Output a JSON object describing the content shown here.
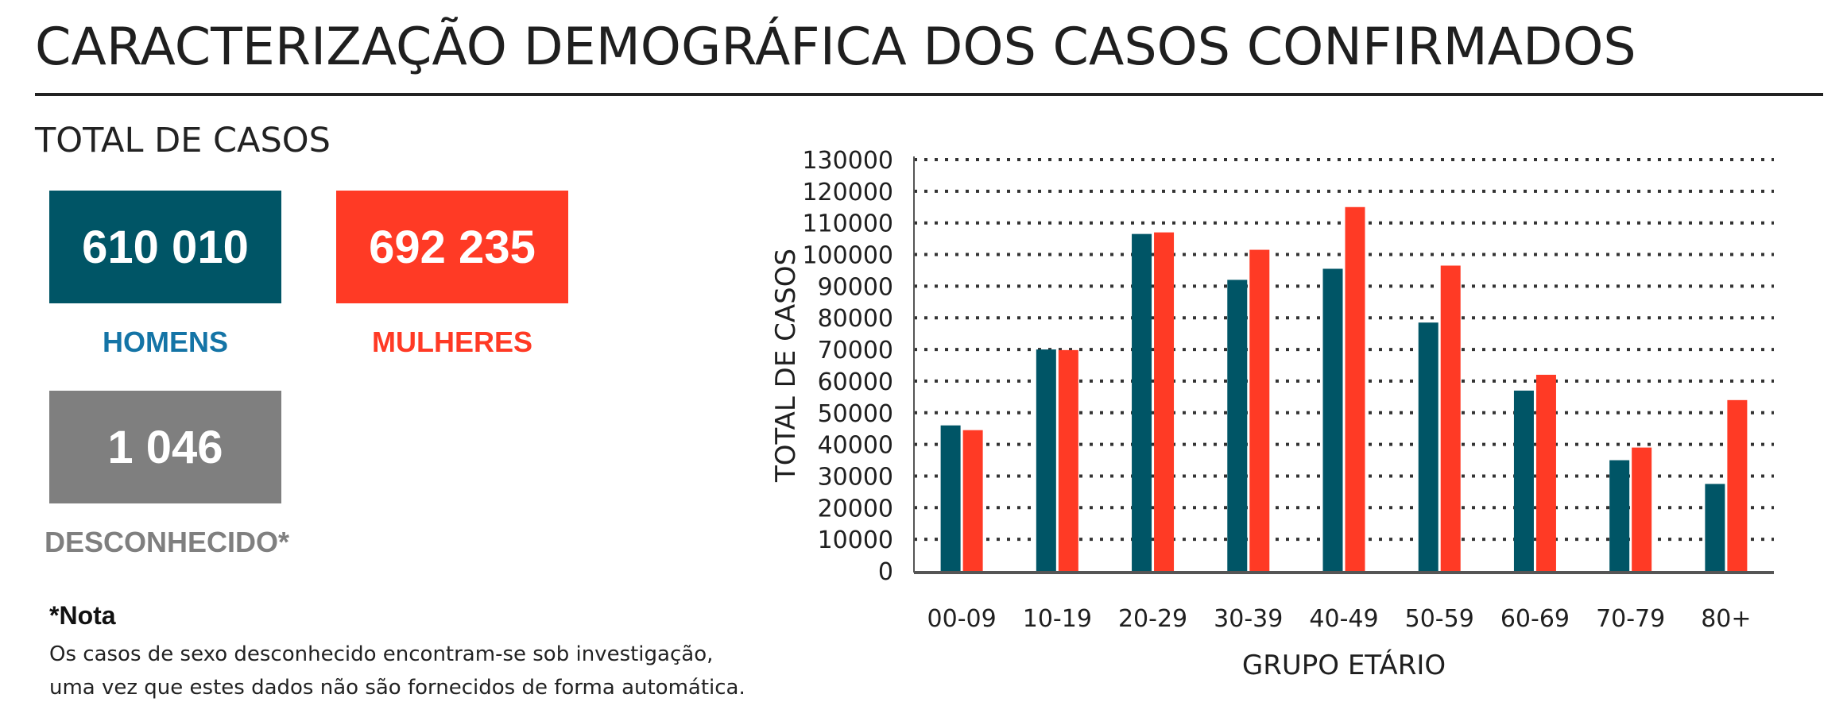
{
  "header": {
    "title": "CARACTERIZAÇÃO DEMOGRÁFICA DOS CASOS CONFIRMADOS",
    "subtitle": "TOTAL DE CASOS"
  },
  "totals": {
    "men": {
      "value": "610 010",
      "label": "HOMENS",
      "color": "#005566"
    },
    "women": {
      "value": "692 235",
      "label": "MULHERES",
      "color": "#ff3a25"
    },
    "unknown": {
      "value": "1 046",
      "label": "DESCONHECIDO*",
      "color": "#7f7f7f"
    }
  },
  "note": {
    "title": "*Nota",
    "line1": "Os casos de sexo desconhecido encontram-se sob investigação,",
    "line2": "uma vez que estes dados não são fornecidos de forma automática."
  },
  "chart_data": {
    "type": "bar",
    "categories": [
      "00-09",
      "10-19",
      "20-29",
      "30-39",
      "40-49",
      "50-59",
      "60-69",
      "70-79",
      "80+"
    ],
    "series": [
      {
        "values": [
          46000,
          70000,
          106500,
          92000,
          95500,
          78500,
          57000,
          35000,
          27500
        ],
        "color": "#005566"
      },
      {
        "values": [
          44500,
          69800,
          107000,
          101500,
          115000,
          96500,
          62000,
          39000,
          54000
        ],
        "color": "#ff3a25"
      }
    ],
    "xlabel": "GRUPO ETÁRIO",
    "ylabel": "TOTAL DE CASOS",
    "ylim": [
      0,
      130000
    ],
    "yticks": [
      "0",
      "10000",
      "20000",
      "30000",
      "40000",
      "50000",
      "60000",
      "70000",
      "80000",
      "90000",
      "100000",
      "110000",
      "120000",
      "130000"
    ],
    "grid": true
  }
}
